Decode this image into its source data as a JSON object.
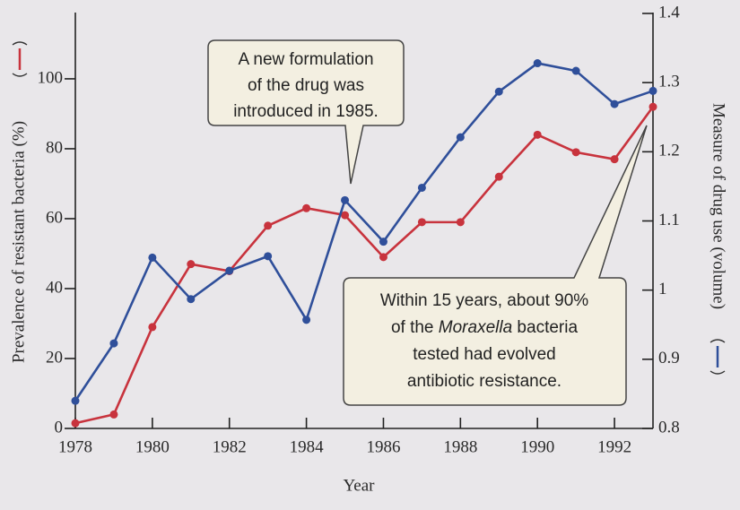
{
  "chart_data": {
    "type": "line",
    "xlabel": "Year",
    "ylabel": "Prevalence of resistant bacteria (%)",
    "y2label": "Measure of drug use (volume)",
    "x": [
      1978,
      1979,
      1980,
      1981,
      1982,
      1983,
      1984,
      1985,
      1986,
      1987,
      1988,
      1989,
      1990,
      1991,
      1992,
      1993
    ],
    "series": [
      {
        "name": "Prevalence of resistant bacteria",
        "color": "#c8333d",
        "axis": "y",
        "values": [
          1.5,
          4,
          29,
          47,
          45,
          58,
          63,
          61,
          49,
          59,
          59,
          72,
          84,
          79,
          77,
          92
        ]
      },
      {
        "name": "Measure of drug use",
        "color": "#2f4f9a",
        "axis": "y2",
        "values": [
          0.84,
          0.923,
          1.047,
          0.987,
          1.028,
          1.049,
          0.957,
          1.13,
          1.07,
          1.148,
          1.221,
          1.287,
          1.328,
          1.317,
          1.269,
          1.288
        ]
      }
    ],
    "xlim": [
      1978,
      1993
    ],
    "xticks": [
      1978,
      1980,
      1982,
      1984,
      1986,
      1988,
      1990,
      1992
    ],
    "ylim": [
      0,
      118.7
    ],
    "yticks": [
      0,
      20,
      40,
      60,
      80,
      100
    ],
    "y2lim": [
      0.8,
      1.4
    ],
    "y2ticks": [
      0.8,
      0.9,
      {
        "value": 1.0,
        "label": "1"
      },
      1.1,
      1.2,
      1.3,
      1.4
    ],
    "annotations": [
      {
        "lines": [
          [
            {
              "text": "A new formulation"
            }
          ],
          [
            {
              "text": "of the drug was"
            }
          ],
          [
            {
              "text": "introduced in 1985."
            }
          ]
        ]
      },
      {
        "lines": [
          [
            {
              "text": "Within 15 years, about 90%"
            }
          ],
          [
            {
              "text": "of the "
            },
            {
              "text": "Moraxella",
              "italic": true
            },
            {
              "text": " bacteria"
            }
          ],
          [
            {
              "text": "tested had evolved"
            }
          ],
          [
            {
              "text": "antibiotic resistance."
            }
          ]
        ]
      }
    ]
  }
}
